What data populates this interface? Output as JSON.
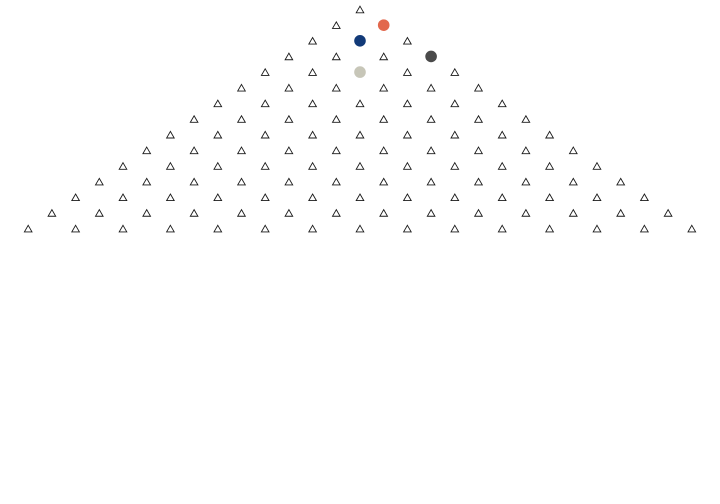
{
  "game": {
    "type": "triangular-peg-board",
    "rows": 15,
    "peg_icon": "triangle-outline",
    "peg_color": "#1a1a1a",
    "balls": [
      {
        "name": "orange-ball",
        "row": 1,
        "col": 1,
        "color": "#e2684d"
      },
      {
        "name": "navy-ball",
        "row": 2,
        "col": 1,
        "color": "#123a78"
      },
      {
        "name": "gray-ball",
        "row": 3,
        "col": 3,
        "color": "#4a4a4a"
      },
      {
        "name": "beige-ball",
        "row": 4,
        "col": 2,
        "color": "#c7c6b8"
      }
    ]
  }
}
